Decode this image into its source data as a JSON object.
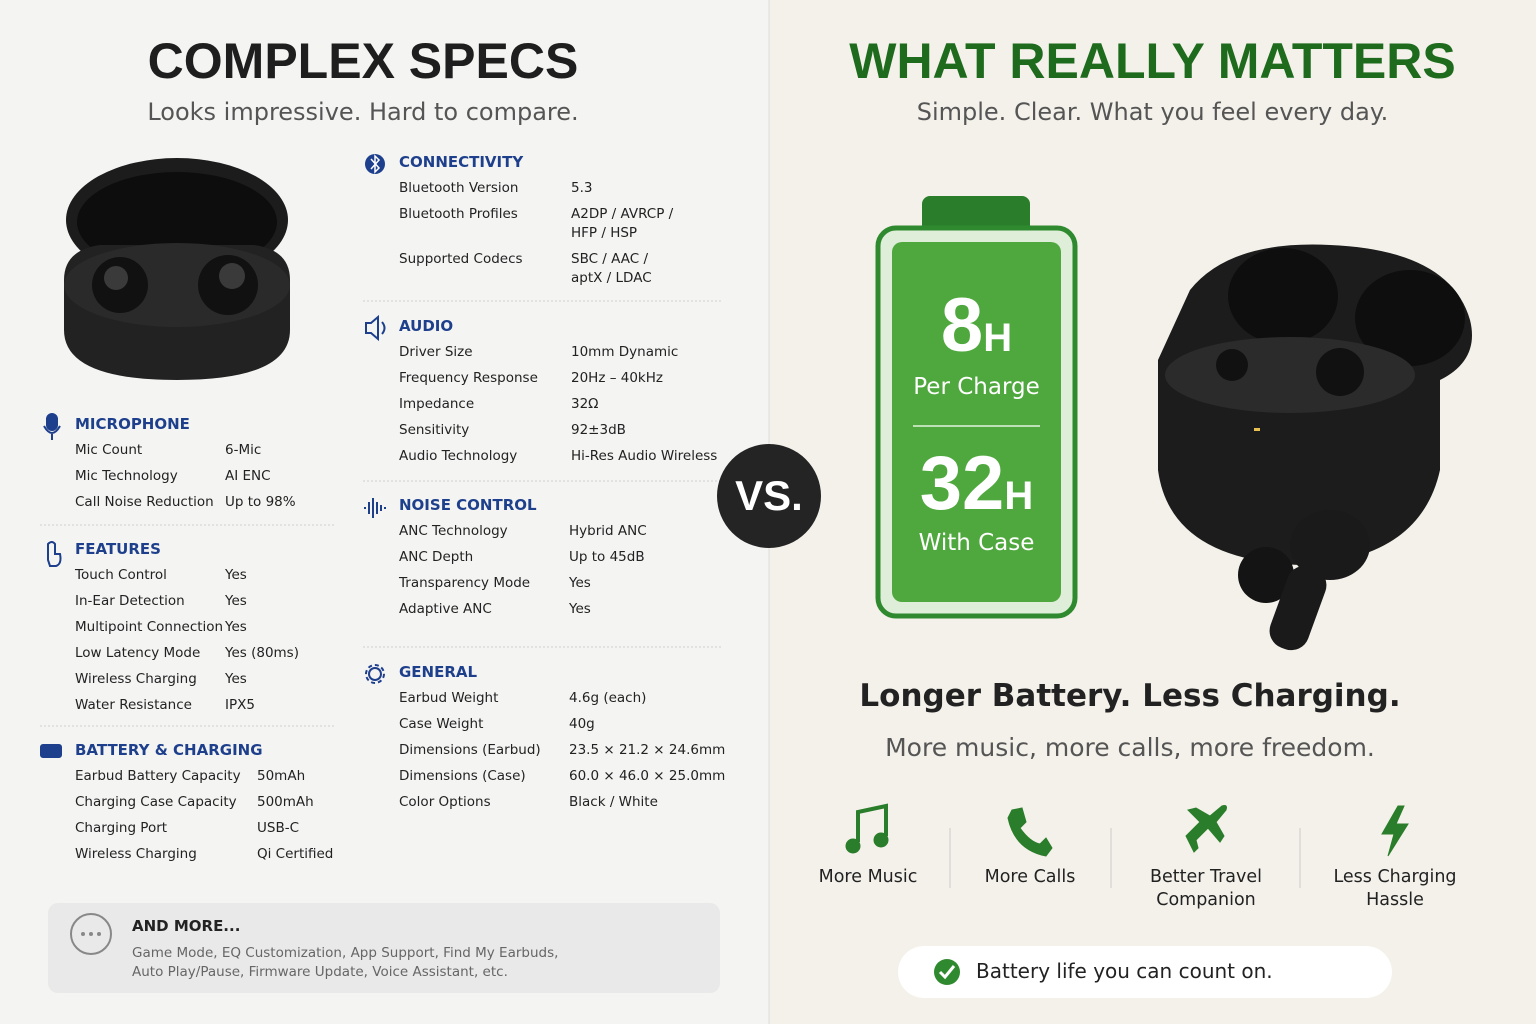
{
  "left": {
    "title": "COMPLEX SPECS",
    "subtitle": "Looks impressive. Hard to compare.",
    "sections": [
      {
        "heading": "MICROPHONE",
        "rows": [
          [
            "Mic Count",
            "6-Mic"
          ],
          [
            "Mic Technology",
            "AI ENC"
          ],
          [
            "Call Noise Reduction",
            "Up to 98%"
          ]
        ]
      },
      {
        "heading": "FEATURES",
        "rows": [
          [
            "Touch Control",
            "Yes"
          ],
          [
            "In-Ear Detection",
            "Yes"
          ],
          [
            "Multipoint Connection",
            "Yes"
          ],
          [
            "Low Latency Mode",
            "Yes (80ms)"
          ],
          [
            "Wireless Charging",
            "Yes"
          ],
          [
            "Water Resistance",
            "IPX5"
          ]
        ]
      },
      {
        "heading": "BATTERY & CHARGING",
        "rows": [
          [
            "Earbud Battery Capacity",
            "50mAh"
          ],
          [
            "Charging Case Capacity",
            "500mAh"
          ],
          [
            "Charging Port",
            "USB-C"
          ],
          [
            "Wireless Charging",
            "Qi Certified"
          ]
        ]
      },
      {
        "heading": "CONNECTIVITY",
        "rows": [
          [
            "Bluetooth Version",
            "5.3"
          ],
          [
            "Bluetooth Profiles",
            "A2DP / AVRCP / HFP / HSP"
          ],
          [
            "Supported Codecs",
            "SBC / AAC / aptX / LDAC"
          ]
        ]
      },
      {
        "heading": "AUDIO",
        "rows": [
          [
            "Driver Size",
            "10mm Dynamic"
          ],
          [
            "Frequency Response",
            "20Hz – 40kHz"
          ],
          [
            "Impedance",
            "32Ω"
          ],
          [
            "Sensitivity",
            "92±3dB"
          ],
          [
            "Audio Technology",
            "Hi-Res Audio Wireless"
          ]
        ]
      },
      {
        "heading": "NOISE CONTROL",
        "rows": [
          [
            "ANC Technology",
            "Hybrid ANC"
          ],
          [
            "ANC Depth",
            "Up to 45dB"
          ],
          [
            "Transparency Mode",
            "Yes"
          ],
          [
            "Adaptive ANC",
            "Yes"
          ]
        ]
      },
      {
        "heading": "GENERAL",
        "rows": [
          [
            "Earbud Weight",
            "4.6g (each)"
          ],
          [
            "Case Weight",
            "40g"
          ],
          [
            "Dimensions (Earbud)",
            "23.5 × 21.2 × 24.6mm"
          ],
          [
            "Dimensions (Case)",
            "60.0 × 46.0 × 25.0mm"
          ],
          [
            "Color Options",
            "Black / White"
          ]
        ]
      }
    ],
    "more": {
      "heading": "AND MORE...",
      "text": "Game Mode, EQ Customization, App Support, Find My Earbuds, Auto Play/Pause, Firmware Update, Voice Assistant, etc."
    }
  },
  "vs": "VS.",
  "right": {
    "title": "WHAT REALLY MATTERS",
    "subtitle": "Simple. Clear. What you feel every day.",
    "battery": {
      "top_value": "8",
      "top_unit": "H",
      "top_label": "Per Charge",
      "bottom_value": "32",
      "bottom_unit": "H",
      "bottom_label": "With Case"
    },
    "headline": "Longer Battery. Less Charging.",
    "subline": "More music, more calls, more freedom.",
    "benefits": [
      "More Music",
      "More Calls",
      "Better Travel Companion",
      "Less Charging Hassle"
    ],
    "footer": "Battery life you can count on."
  }
}
